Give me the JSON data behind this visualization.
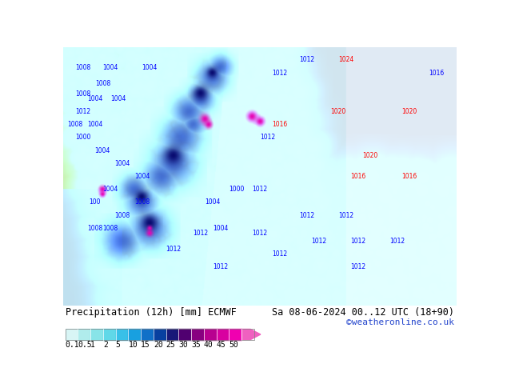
{
  "title_left": "Precipitation (12h) [mm] ECMWF",
  "title_right": "Sa 08-06-2024 00..12 UTC (18+90)",
  "credit": "©weatheronline.co.uk",
  "colorbar_labels": [
    "0.1",
    "0.5",
    "1",
    "2",
    "5",
    "10",
    "15",
    "20",
    "25",
    "30",
    "35",
    "40",
    "45",
    "50"
  ],
  "colorbar_colors": [
    "#d8f5f5",
    "#b0ecec",
    "#88e4e8",
    "#60d8e8",
    "#38c0e8",
    "#18a0e0",
    "#1070c8",
    "#0840a0",
    "#181878",
    "#500070",
    "#880080",
    "#b80090",
    "#d800a0",
    "#f000b0",
    "#f060c0"
  ],
  "fig_width": 6.34,
  "fig_height": 4.9,
  "dpi": 100,
  "bg_color": "#ffffff",
  "map_bg": "#c8eef8",
  "land_color": "#c8e8a0",
  "title_fontsize": 8.5,
  "credit_fontsize": 8,
  "credit_color": "#2244cc",
  "label_fontsize": 7
}
